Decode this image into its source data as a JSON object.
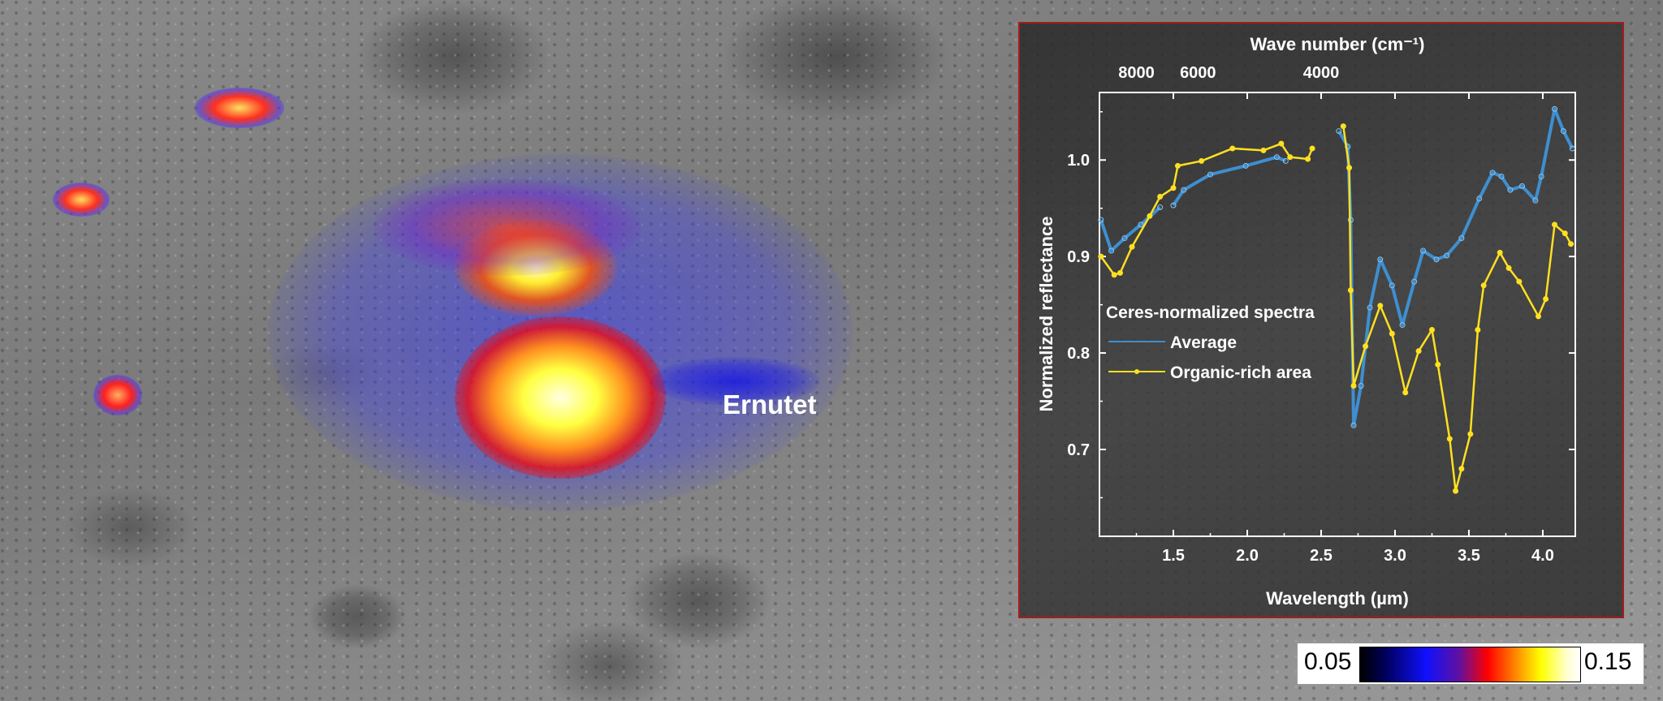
{
  "annotation": {
    "crater_label": "Ernutet"
  },
  "colorbar": {
    "min_label": "0.05",
    "max_label": "0.15",
    "colors": [
      "#000000",
      "#1010ff",
      "#ff0000",
      "#ff8000",
      "#ffff00",
      "#ffffff"
    ]
  },
  "colors": {
    "average": "#3e8fd0",
    "organic": "#ffe020",
    "inset_border": "#a51c1c"
  },
  "chart_data": {
    "type": "line",
    "xlabel": "Wavelength (µm)",
    "ylabel": "Normalized reflectance",
    "top_axis_label": "Wave number (cm⁻¹)",
    "xlim": [
      1.0,
      4.22
    ],
    "ylim": [
      0.61,
      1.07
    ],
    "xticks": [
      "1.5",
      "2.0",
      "2.5",
      "3.0",
      "3.5",
      "4.0"
    ],
    "xtick_values": [
      1.5,
      2.0,
      2.5,
      3.0,
      3.5,
      4.0
    ],
    "yticks": [
      "0.7",
      "0.8",
      "0.9",
      "1.0"
    ],
    "ytick_values": [
      0.7,
      0.8,
      0.9,
      1.0
    ],
    "top_ticks": [
      "8000",
      "6000",
      "4000"
    ],
    "top_tick_values": [
      8000,
      6000,
      4000
    ],
    "legend_title": "Ceres-normalized spectra",
    "grid": false,
    "legend_placement": "center-left",
    "series": [
      {
        "name": "Average",
        "segments": [
          [
            [
              1.01,
              0.938
            ],
            [
              1.08,
              0.906
            ],
            [
              1.17,
              0.919
            ],
            [
              1.28,
              0.933
            ],
            [
              1.41,
              0.951
            ]
          ],
          [
            [
              1.5,
              0.953
            ],
            [
              1.57,
              0.969
            ],
            [
              1.75,
              0.985
            ],
            [
              1.99,
              0.994
            ],
            [
              2.2,
              1.003
            ],
            [
              2.26,
              0.999
            ]
          ],
          [
            [
              2.62,
              1.03
            ],
            [
              2.68,
              1.014
            ],
            [
              2.7,
              0.938
            ],
            [
              2.72,
              0.725
            ],
            [
              2.77,
              0.766
            ],
            [
              2.83,
              0.847
            ],
            [
              2.9,
              0.897
            ],
            [
              2.98,
              0.87
            ],
            [
              3.05,
              0.829
            ],
            [
              3.13,
              0.874
            ],
            [
              3.19,
              0.906
            ],
            [
              3.28,
              0.897
            ],
            [
              3.35,
              0.901
            ],
            [
              3.45,
              0.919
            ],
            [
              3.57,
              0.96
            ],
            [
              3.66,
              0.987
            ],
            [
              3.72,
              0.983
            ],
            [
              3.78,
              0.969
            ],
            [
              3.86,
              0.973
            ],
            [
              3.95,
              0.958
            ],
            [
              3.99,
              0.983
            ],
            [
              4.08,
              1.053
            ],
            [
              4.14,
              1.03
            ],
            [
              4.2,
              1.012
            ]
          ]
        ]
      },
      {
        "name": "Organic-rich area",
        "segments": [
          [
            [
              1.01,
              0.9
            ],
            [
              1.1,
              0.881
            ],
            [
              1.14,
              0.883
            ],
            [
              1.22,
              0.91
            ],
            [
              1.34,
              0.942
            ],
            [
              1.41,
              0.962
            ],
            [
              1.5,
              0.971
            ],
            [
              1.53,
              0.994
            ],
            [
              1.69,
              0.999
            ],
            [
              1.9,
              1.012
            ],
            [
              2.11,
              1.01
            ],
            [
              2.23,
              1.017
            ],
            [
              2.29,
              1.003
            ],
            [
              2.41,
              1.001
            ],
            [
              2.44,
              1.012
            ]
          ],
          [
            [
              2.65,
              1.035
            ],
            [
              2.69,
              0.992
            ],
            [
              2.7,
              0.865
            ],
            [
              2.72,
              0.766
            ],
            [
              2.8,
              0.807
            ],
            [
              2.9,
              0.849
            ],
            [
              2.98,
              0.82
            ],
            [
              3.07,
              0.759
            ],
            [
              3.16,
              0.802
            ],
            [
              3.25,
              0.824
            ],
            [
              3.29,
              0.788
            ],
            [
              3.37,
              0.711
            ],
            [
              3.41,
              0.657
            ],
            [
              3.45,
              0.68
            ],
            [
              3.51,
              0.716
            ],
            [
              3.56,
              0.824
            ],
            [
              3.6,
              0.87
            ],
            [
              3.71,
              0.904
            ],
            [
              3.77,
              0.888
            ],
            [
              3.84,
              0.874
            ],
            [
              3.97,
              0.838
            ],
            [
              4.02,
              0.856
            ],
            [
              4.08,
              0.933
            ],
            [
              4.15,
              0.924
            ],
            [
              4.19,
              0.913
            ]
          ]
        ]
      }
    ]
  }
}
